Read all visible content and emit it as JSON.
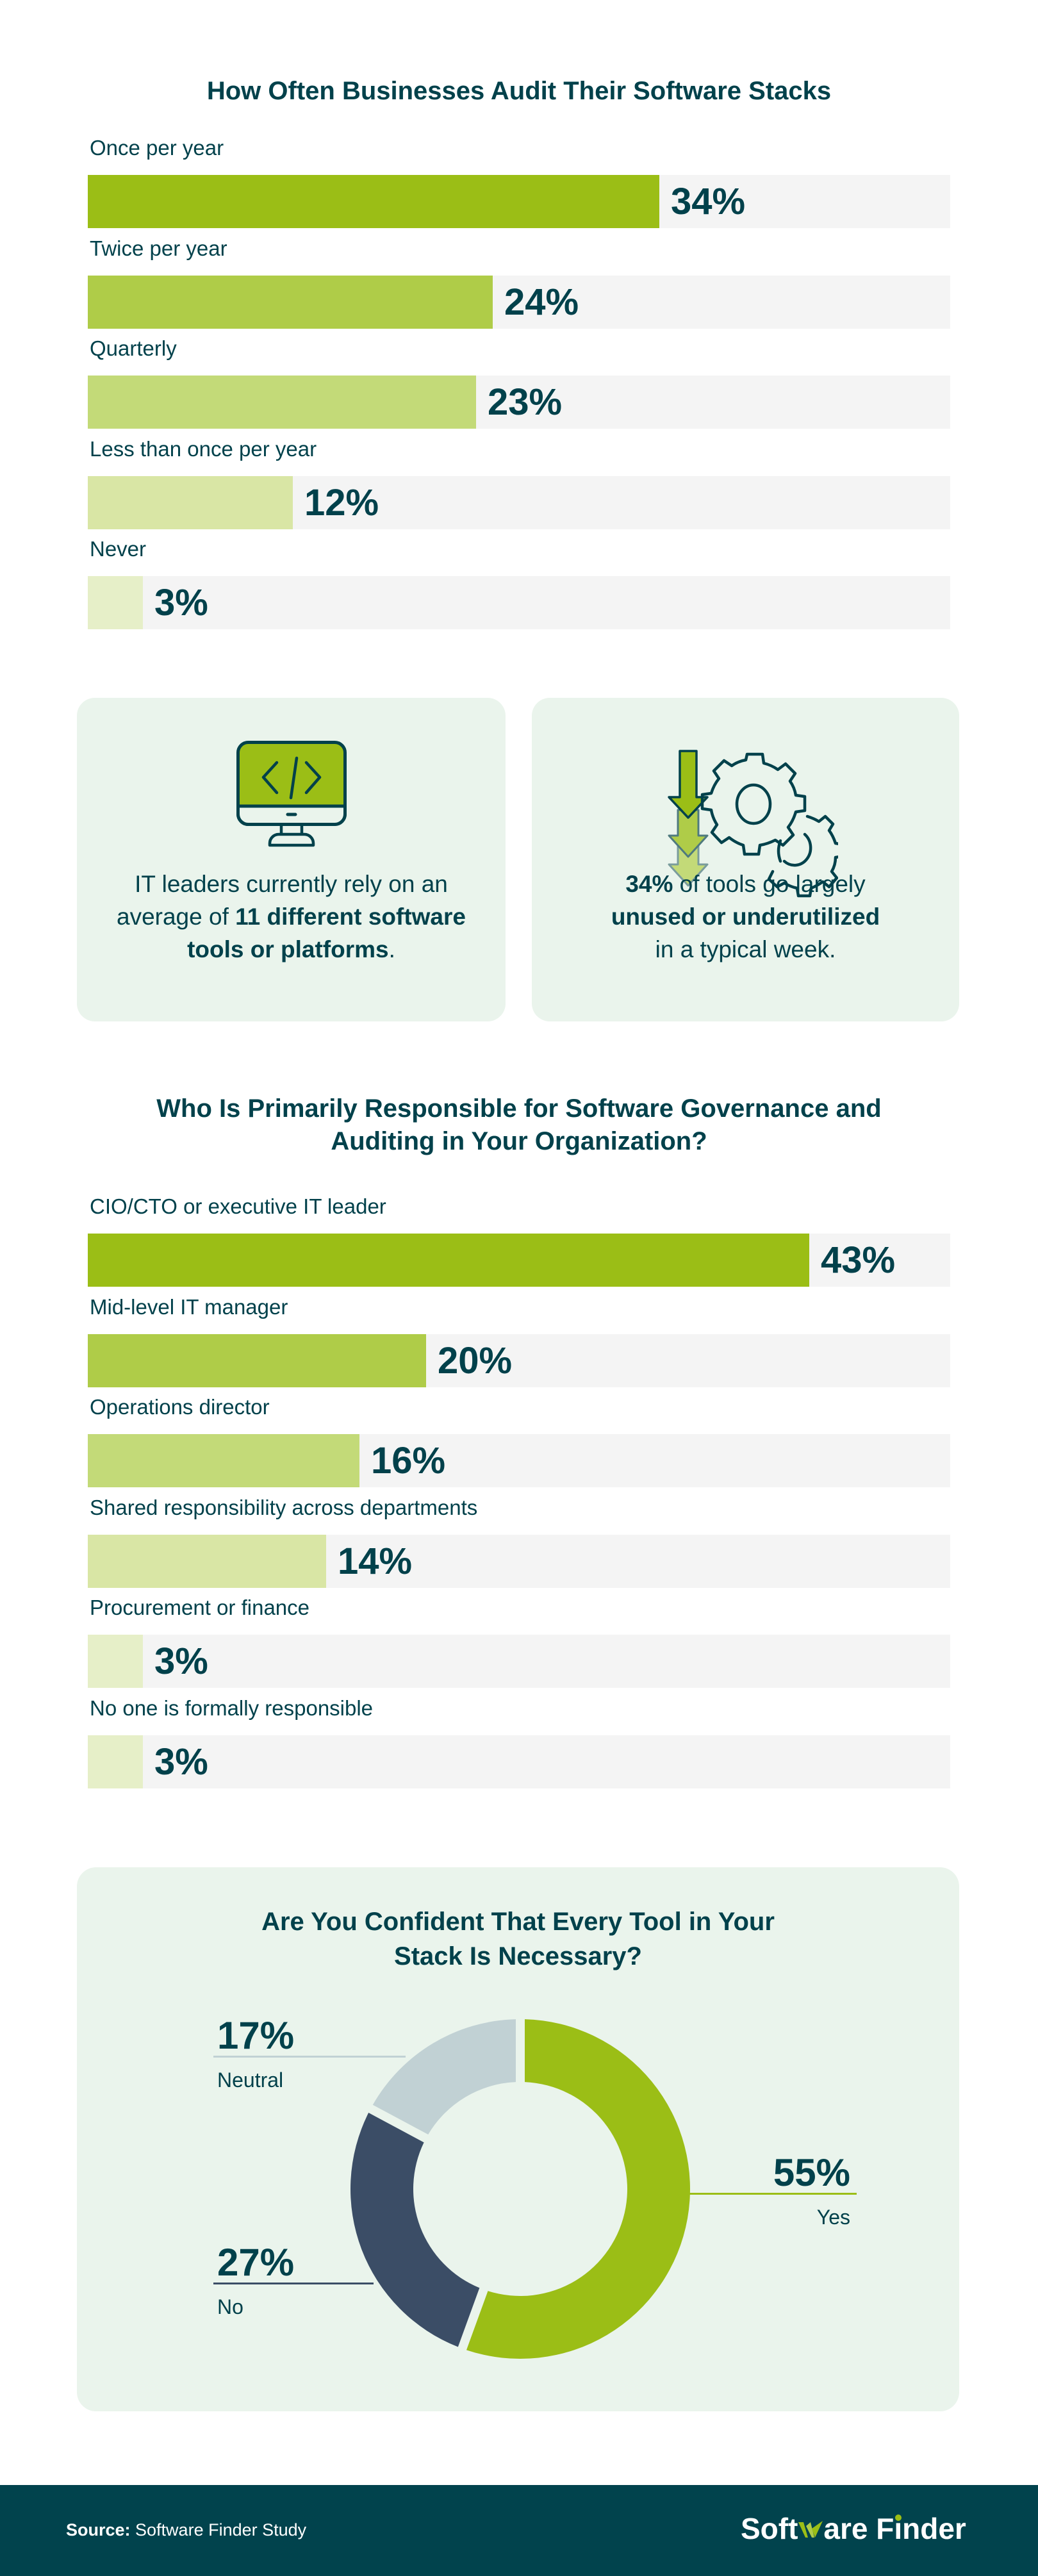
{
  "chart_data": [
    {
      "type": "bar",
      "orientation": "horizontal",
      "title": "How Often Businesses Audit Their Software Stacks",
      "categories": [
        "Once per year",
        "Twice per year",
        "Quarterly",
        "Less than once per year",
        "Never"
      ],
      "values": [
        34,
        24,
        23,
        12,
        3
      ],
      "value_labels": [
        "34%",
        "24%",
        "23%",
        "12%",
        "3%"
      ],
      "unit": "%",
      "colors": [
        "#9bbe16",
        "#afcc48",
        "#c3da78",
        "#d9e6a5",
        "#e6efc8"
      ],
      "xlabel": "",
      "ylabel": "",
      "grid": false
    },
    {
      "type": "bar",
      "orientation": "horizontal",
      "title": "Who Is Primarily Responsible for Software Governance and Auditing in Your Organization?",
      "categories": [
        "CIO/CTO or executive IT leader",
        "Mid-level IT manager",
        "Operations director",
        "Shared responsibility across departments",
        "Procurement or finance",
        "No one is formally responsible"
      ],
      "values": [
        43,
        20,
        16,
        14,
        3,
        3
      ],
      "value_labels": [
        "43%",
        "20%",
        "16%",
        "14%",
        "3%",
        "3%"
      ],
      "unit": "%",
      "colors": [
        "#9bbe16",
        "#afcc48",
        "#c3da78",
        "#d9e6a5",
        "#e6efc8",
        "#e6efc8"
      ],
      "xlabel": "",
      "ylabel": "",
      "grid": false
    },
    {
      "type": "pie",
      "variant": "donut",
      "title": "Are You Confident That Every Tool in Your Stack Is Necessary?",
      "categories": [
        "Yes",
        "No",
        "Neutral"
      ],
      "values": [
        55,
        27,
        17
      ],
      "value_labels": [
        "55%",
        "27%",
        "17%"
      ],
      "colors": [
        "#9bbe16",
        "#3b4d66",
        "#c1d1d4"
      ]
    }
  ],
  "chart1": {
    "title": "How Often Businesses Audit Their Software Stacks",
    "rows": [
      {
        "label": "Once per year",
        "value": "34%"
      },
      {
        "label": "Twice per year",
        "value": "24%"
      },
      {
        "label": "Quarterly",
        "value": "23%"
      },
      {
        "label": "Less than once per year",
        "value": "12%"
      },
      {
        "label": "Never",
        "value": "3%"
      }
    ]
  },
  "cards": [
    {
      "icon": "monitor-code-icon",
      "text_pre": "IT leaders currently rely on an average of ",
      "text_bold": "11 different software tools or platforms",
      "text_post": "."
    },
    {
      "icon": "arrows-gears-icon",
      "text_bold_1": "34%",
      "text_mid": " of tools go largely ",
      "text_bold_2": "unused or underutilized",
      "text_post": " in a typical week."
    }
  ],
  "chart2": {
    "title_line1": "Who Is Primarily Responsible for Software Governance and",
    "title_line2": "Auditing in Your Organization?",
    "rows": [
      {
        "label": "CIO/CTO or executive IT leader",
        "value": "43%"
      },
      {
        "label": "Mid-level IT manager",
        "value": "20%"
      },
      {
        "label": "Operations director",
        "value": "16%"
      },
      {
        "label": "Shared responsibility across departments",
        "value": "14%"
      },
      {
        "label": "Procurement or finance",
        "value": "3%"
      },
      {
        "label": "No one is formally responsible",
        "value": "3%"
      }
    ]
  },
  "donut": {
    "title_line1": "Are You Confident That Every Tool in Your",
    "title_line2": "Stack Is Necessary?",
    "slices": [
      {
        "label": "Yes",
        "value": "55%"
      },
      {
        "label": "No",
        "value": "27%"
      },
      {
        "label": "Neutral",
        "value": "17%"
      }
    ]
  },
  "footer": {
    "source_label": "Source:",
    "source_text": " Software Finder Study",
    "logo_part1": "Soft",
    "logo_part2": "are F",
    "logo_i": "ı",
    "logo_part3": "nder"
  }
}
